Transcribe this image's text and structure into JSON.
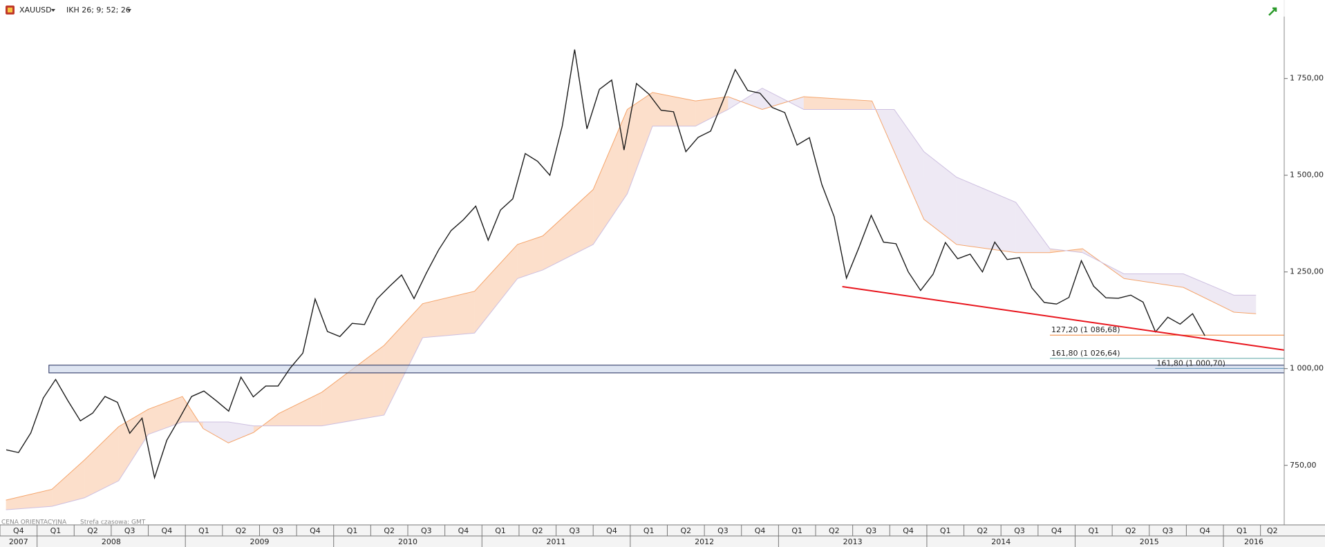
{
  "chart_data": {
    "type": "line",
    "x": [
      2007.792,
      2007.875,
      2007.958,
      2008.042,
      2008.125,
      2008.208,
      2008.292,
      2008.375,
      2008.458,
      2008.542,
      2008.625,
      2008.708,
      2008.792,
      2008.875,
      2008.958,
      2009.042,
      2009.125,
      2009.208,
      2009.292,
      2009.375,
      2009.458,
      2009.542,
      2009.625,
      2009.708,
      2009.792,
      2009.875,
      2009.958,
      2010.042,
      2010.125,
      2010.208,
      2010.292,
      2010.375,
      2010.458,
      2010.542,
      2010.625,
      2010.708,
      2010.792,
      2010.875,
      2010.958,
      2011.042,
      2011.125,
      2011.208,
      2011.292,
      2011.375,
      2011.458,
      2011.542,
      2011.625,
      2011.708,
      2011.792,
      2011.875,
      2011.958,
      2012.042,
      2012.125,
      2012.208,
      2012.292,
      2012.375,
      2012.458,
      2012.542,
      2012.625,
      2012.708,
      2012.792,
      2012.875,
      2012.958,
      2013.042,
      2013.125,
      2013.208,
      2013.292,
      2013.375,
      2013.458,
      2013.542,
      2013.625,
      2013.708,
      2013.792,
      2013.875,
      2013.958,
      2014.042,
      2014.125,
      2014.208,
      2014.292,
      2014.375,
      2014.458,
      2014.542,
      2014.625,
      2014.708,
      2014.792,
      2014.875,
      2014.958,
      2015.042,
      2015.125,
      2015.208,
      2015.292,
      2015.375,
      2015.458,
      2015.542,
      2015.625,
      2015.708,
      2015.792,
      2015.875
    ],
    "series": [
      {
        "name": "XAUUSD",
        "color": "#1a1a1a",
        "values": [
          790,
          783,
          834,
          924,
          972,
          917,
          865,
          885,
          928,
          913,
          833,
          872,
          718,
          815,
          870,
          928,
          942,
          917,
          890,
          978,
          927,
          955,
          955,
          1002,
          1040,
          1180,
          1096,
          1083,
          1117,
          1114,
          1180,
          1212,
          1242,
          1181,
          1247,
          1307,
          1357,
          1385,
          1420,
          1332,
          1410,
          1439,
          1556,
          1536,
          1500,
          1628,
          1825,
          1620,
          1722,
          1746,
          1565,
          1737,
          1710,
          1668,
          1664,
          1561,
          1598,
          1614,
          1692,
          1773,
          1719,
          1712,
          1675,
          1662,
          1578,
          1597,
          1476,
          1393,
          1234,
          1313,
          1396,
          1327,
          1323,
          1250,
          1202,
          1244,
          1326,
          1284,
          1296,
          1250,
          1327,
          1282,
          1287,
          1209,
          1171,
          1167,
          1184,
          1279,
          1213,
          1183,
          1182,
          1190,
          1172,
          1095,
          1133,
          1115,
          1142,
          1085
        ]
      }
    ],
    "cloud": {
      "name": "IKH 26; 9; 52; 26",
      "bull_color": "#f5a46a",
      "bear_color": "#cdbfe0",
      "x": [
        2007.79,
        2008.1,
        2008.32,
        2008.55,
        2008.75,
        2008.98,
        2009.12,
        2009.29,
        2009.46,
        2009.63,
        2009.92,
        2010.34,
        2010.6,
        2010.95,
        2011.24,
        2011.41,
        2011.75,
        2011.98,
        2012.15,
        2012.44,
        2012.66,
        2012.89,
        2013.17,
        2013.63,
        2013.78,
        2013.98,
        2014.2,
        2014.6,
        2014.83,
        2015.05,
        2015.33,
        2015.73,
        2016.07,
        2016.22
      ],
      "span_a": [
        660,
        688,
        764,
        850,
        895,
        928,
        845,
        808,
        835,
        884,
        939,
        1060,
        1168,
        1200,
        1321,
        1343,
        1463,
        1670,
        1714,
        1692,
        1703,
        1670,
        1703,
        1692,
        1561,
        1386,
        1321,
        1300,
        1300,
        1310,
        1233,
        1210,
        1146,
        1142
      ],
      "span_b": [
        635,
        644,
        666,
        710,
        830,
        862,
        862,
        862,
        852,
        852,
        852,
        880,
        1080,
        1092,
        1233,
        1255,
        1321,
        1452,
        1627,
        1627,
        1670,
        1725,
        1670,
        1670,
        1670,
        1561,
        1495,
        1430,
        1310,
        1300,
        1245,
        1245,
        1190,
        1190
      ]
    },
    "trendline": {
      "x": [
        2013.43,
        2016.41
      ],
      "values": [
        1212,
        1048
      ],
      "color": "#e8141c"
    },
    "support_zone": {
      "x_start": 2008.08,
      "range": [
        989,
        1009
      ],
      "color": "#1e2a5a"
    },
    "fib_levels": [
      {
        "label": "127,20 (1 086,68)",
        "value": 1086.68,
        "x_start": 2014.83,
        "color": "#f08030"
      },
      {
        "label": "161,80 (1 026,64)",
        "value": 1026.64,
        "x_start": 2014.83,
        "color": "#5aa5a5"
      },
      {
        "label": "161,80 (1 000,70)",
        "value": 1000.7,
        "x_start": 2015.54,
        "color": "#5a8fb5"
      }
    ],
    "xlim": [
      2007.75,
      2016.41
    ],
    "ylim": [
      596,
      1953
    ],
    "yticks": [
      {
        "value": 750,
        "label": "750,00"
      },
      {
        "value": 1000,
        "label": "1 000,00"
      },
      {
        "value": 1250,
        "label": "1 250,00"
      },
      {
        "value": 1500,
        "label": "1 500,00"
      },
      {
        "value": 1750,
        "label": "1 750,00"
      }
    ],
    "xticks": [
      {
        "value": 2007.75,
        "label": "Q4"
      },
      {
        "value": 2008.0,
        "label": "Q1"
      },
      {
        "value": 2008.25,
        "label": "Q2"
      },
      {
        "value": 2008.5,
        "label": "Q3"
      },
      {
        "value": 2008.75,
        "label": "Q4"
      },
      {
        "value": 2009.0,
        "label": "Q1"
      },
      {
        "value": 2009.25,
        "label": "Q2"
      },
      {
        "value": 2009.5,
        "label": "Q3"
      },
      {
        "value": 2009.75,
        "label": "Q4"
      },
      {
        "value": 2010.0,
        "label": "Q1"
      },
      {
        "value": 2010.25,
        "label": "Q2"
      },
      {
        "value": 2010.5,
        "label": "Q3"
      },
      {
        "value": 2010.75,
        "label": "Q4"
      },
      {
        "value": 2011.0,
        "label": "Q1"
      },
      {
        "value": 2011.25,
        "label": "Q2"
      },
      {
        "value": 2011.5,
        "label": "Q3"
      },
      {
        "value": 2011.75,
        "label": "Q4"
      },
      {
        "value": 2012.0,
        "label": "Q1"
      },
      {
        "value": 2012.25,
        "label": "Q2"
      },
      {
        "value": 2012.5,
        "label": "Q3"
      },
      {
        "value": 2012.75,
        "label": "Q4"
      },
      {
        "value": 2013.0,
        "label": "Q1"
      },
      {
        "value": 2013.25,
        "label": "Q2"
      },
      {
        "value": 2013.5,
        "label": "Q3"
      },
      {
        "value": 2013.75,
        "label": "Q4"
      },
      {
        "value": 2014.0,
        "label": "Q1"
      },
      {
        "value": 2014.25,
        "label": "Q2"
      },
      {
        "value": 2014.5,
        "label": "Q3"
      },
      {
        "value": 2014.75,
        "label": "Q4"
      },
      {
        "value": 2015.0,
        "label": "Q1"
      },
      {
        "value": 2015.25,
        "label": "Q2"
      },
      {
        "value": 2015.5,
        "label": "Q3"
      },
      {
        "value": 2015.75,
        "label": "Q4"
      },
      {
        "value": 2016.0,
        "label": "Q1"
      },
      {
        "value": 2016.25,
        "label": "Q2"
      }
    ],
    "year_ticks": [
      2007,
      2008,
      2009,
      2010,
      2011,
      2012,
      2013,
      2014,
      2015,
      2016
    ],
    "footer": [
      "CENA ORIENTACYJNA",
      "Strefa czasowa: GMT"
    ]
  }
}
